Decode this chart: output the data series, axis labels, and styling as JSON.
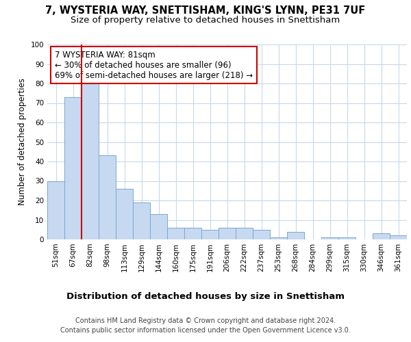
{
  "title1": "7, WYSTERIA WAY, SNETTISHAM, KING'S LYNN, PE31 7UF",
  "title2": "Size of property relative to detached houses in Snettisham",
  "xlabel": "Distribution of detached houses by size in Snettisham",
  "ylabel": "Number of detached properties",
  "footer1": "Contains HM Land Registry data © Crown copyright and database right 2024.",
  "footer2": "Contains public sector information licensed under the Open Government Licence v3.0.",
  "bar_labels": [
    "51sqm",
    "67sqm",
    "82sqm",
    "98sqm",
    "113sqm",
    "129sqm",
    "144sqm",
    "160sqm",
    "175sqm",
    "191sqm",
    "206sqm",
    "222sqm",
    "237sqm",
    "253sqm",
    "268sqm",
    "284sqm",
    "299sqm",
    "315sqm",
    "330sqm",
    "346sqm",
    "361sqm"
  ],
  "bar_values": [
    30,
    73,
    80,
    43,
    26,
    19,
    13,
    6,
    6,
    5,
    6,
    6,
    5,
    1,
    4,
    0,
    1,
    1,
    0,
    3,
    2
  ],
  "bar_color": "#c6d9f0",
  "bar_edge_color": "#7ba7d0",
  "vline_x": 2,
  "vline_color": "#cc0000",
  "annotation_text": "7 WYSTERIA WAY: 81sqm\n← 30% of detached houses are smaller (96)\n69% of semi-detached houses are larger (218) →",
  "annotation_box_color": "white",
  "annotation_box_edge": "#cc0000",
  "ylim": [
    0,
    100
  ],
  "background_color": "#ffffff",
  "plot_bg_color": "#ffffff",
  "grid_color": "#c8d8e8",
  "title1_fontsize": 10.5,
  "title2_fontsize": 9.5,
  "xlabel_fontsize": 9.5,
  "ylabel_fontsize": 8.5,
  "tick_fontsize": 7.5,
  "annotation_fontsize": 8.5,
  "footer_fontsize": 7.0
}
